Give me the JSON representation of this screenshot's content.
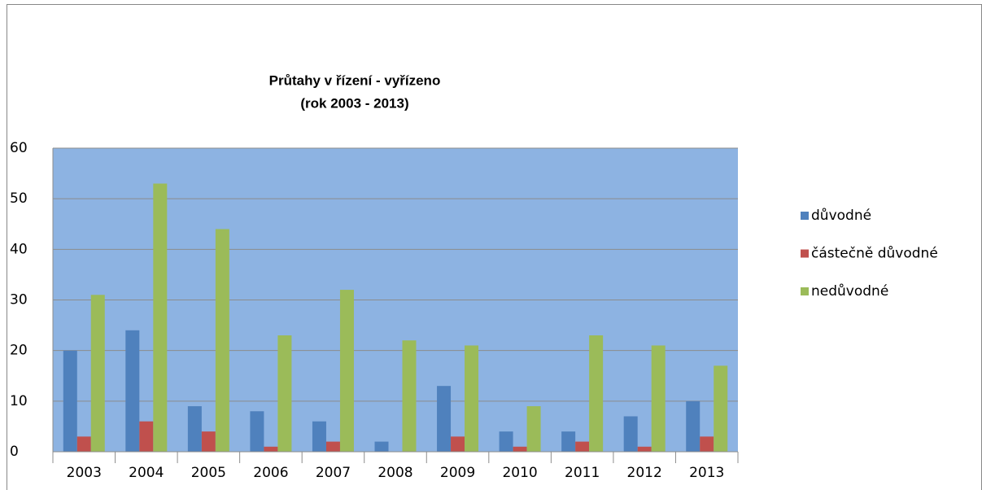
{
  "chart_data": {
    "type": "bar",
    "title": "Průtahy v řízení - vyřízeno",
    "subtitle": "(rok 2003 - 2013)",
    "categories": [
      "2003",
      "2004",
      "2005",
      "2006",
      "2007",
      "2008",
      "2009",
      "2010",
      "2011",
      "2012",
      "2013"
    ],
    "series": [
      {
        "name": "důvodné",
        "color": "#4f81bd",
        "values": [
          20,
          24,
          9,
          8,
          6,
          2,
          13,
          4,
          4,
          7,
          10
        ]
      },
      {
        "name": "částečně důvodné",
        "color": "#c0504d",
        "values": [
          3,
          6,
          4,
          1,
          2,
          0,
          3,
          1,
          2,
          1,
          3
        ]
      },
      {
        "name": "nedůvodné",
        "color": "#9bbb59",
        "values": [
          31,
          53,
          44,
          23,
          32,
          22,
          21,
          9,
          23,
          21,
          17
        ]
      }
    ],
    "ylim": [
      0,
      60
    ],
    "yticks": [
      0,
      10,
      20,
      30,
      40,
      50,
      60
    ],
    "grid": true,
    "plot_background": "#8db3e2",
    "legend": "right"
  }
}
